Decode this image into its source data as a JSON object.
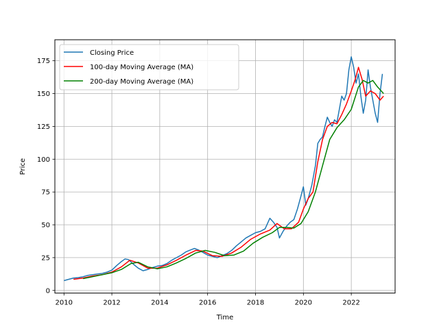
{
  "chart_data": {
    "type": "line",
    "title": "",
    "xlabel": "Time",
    "ylabel": "Price",
    "xlim": [
      2009.62,
      2023.83
    ],
    "ylim": [
      -2,
      191
    ],
    "x_ticks": [
      2010,
      2012,
      2014,
      2016,
      2018,
      2020,
      2022
    ],
    "x_tick_labels": [
      "2010",
      "2012",
      "2014",
      "2016",
      "2018",
      "2020",
      "2022"
    ],
    "y_ticks": [
      0,
      25,
      50,
      75,
      100,
      125,
      150,
      175
    ],
    "y_tick_labels": [
      "0",
      "25",
      "50",
      "75",
      "100",
      "125",
      "150",
      "175"
    ],
    "grid": true,
    "legend_position": "upper-left",
    "series": [
      {
        "name": "Closing Price",
        "color": "#1f77b4",
        "x": [
          2010.0,
          2010.2,
          2010.4,
          2010.6,
          2010.8,
          2011.0,
          2011.2,
          2011.4,
          2011.6,
          2011.8,
          2012.0,
          2012.2,
          2012.4,
          2012.55,
          2012.7,
          2012.9,
          2013.1,
          2013.3,
          2013.5,
          2013.7,
          2013.9,
          2014.1,
          2014.3,
          2014.5,
          2014.7,
          2014.9,
          2015.1,
          2015.3,
          2015.45,
          2015.6,
          2015.8,
          2016.0,
          2016.2,
          2016.4,
          2016.6,
          2016.8,
          2017.0,
          2017.2,
          2017.4,
          2017.6,
          2017.8,
          2018.0,
          2018.2,
          2018.4,
          2018.6,
          2018.75,
          2018.9,
          2019.0,
          2019.15,
          2019.3,
          2019.45,
          2019.6,
          2019.75,
          2019.9,
          2020.0,
          2020.1,
          2020.2,
          2020.35,
          2020.5,
          2020.6,
          2020.7,
          2020.8,
          2020.9,
          2021.0,
          2021.1,
          2021.2,
          2021.3,
          2021.4,
          2021.5,
          2021.6,
          2021.7,
          2021.8,
          2021.9,
          2022.0,
          2022.1,
          2022.2,
          2022.3,
          2022.4,
          2022.5,
          2022.6,
          2022.7,
          2022.8,
          2022.9,
          2023.0,
          2023.1,
          2023.2,
          2023.3
        ],
        "values": [
          7.5,
          8.5,
          9.5,
          9.8,
          10.5,
          11.5,
          12.0,
          12.5,
          13.0,
          14.0,
          15.5,
          19.0,
          22.0,
          24.0,
          23.5,
          20.0,
          17.0,
          15.0,
          16.0,
          17.5,
          18.5,
          19.0,
          20.5,
          23.0,
          25.0,
          27.0,
          29.5,
          31.0,
          32.0,
          31.0,
          29.0,
          27.0,
          26.0,
          25.0,
          26.5,
          28.0,
          30.5,
          34.0,
          37.0,
          40.0,
          42.0,
          44.0,
          45.0,
          47.0,
          55.0,
          52.0,
          48.0,
          40.0,
          45.0,
          49.0,
          52.0,
          54.0,
          62.0,
          72.0,
          79.0,
          65.0,
          70.0,
          80.0,
          95.0,
          112.0,
          115.0,
          117.0,
          125.0,
          132.0,
          128.0,
          125.0,
          130.0,
          128.0,
          138.0,
          148.0,
          145.0,
          150.0,
          168.0,
          178.0,
          170.0,
          158.0,
          165.0,
          148.0,
          135.0,
          145.0,
          168.0,
          155.0,
          145.0,
          135.0,
          128.0,
          150.0,
          165.0
        ]
      },
      {
        "name": "100-day Moving Average (MA)",
        "color": "#ff0000",
        "x": [
          2010.4,
          2010.8,
          2011.2,
          2011.6,
          2012.0,
          2012.4,
          2012.75,
          2013.1,
          2013.5,
          2013.9,
          2014.3,
          2014.7,
          2015.1,
          2015.5,
          2015.8,
          2016.2,
          2016.6,
          2017.0,
          2017.4,
          2017.8,
          2018.2,
          2018.6,
          2018.9,
          2019.2,
          2019.5,
          2019.8,
          2020.0,
          2020.2,
          2020.4,
          2020.6,
          2020.8,
          2021.0,
          2021.2,
          2021.4,
          2021.6,
          2021.8,
          2022.0,
          2022.15,
          2022.3,
          2022.45,
          2022.6,
          2022.8,
          2023.0,
          2023.2,
          2023.35
        ],
        "values": [
          8.5,
          9.5,
          11.0,
          12.0,
          14.0,
          18.0,
          23.0,
          21.0,
          17.0,
          17.0,
          19.5,
          23.0,
          27.0,
          30.5,
          30.0,
          26.5,
          26.0,
          28.5,
          33.0,
          39.0,
          43.0,
          46.0,
          51.0,
          47.0,
          47.0,
          52.0,
          62.0,
          70.0,
          75.0,
          98.0,
          115.0,
          125.0,
          128.0,
          127.0,
          134.0,
          142.0,
          152.0,
          160.0,
          170.0,
          161.0,
          148.0,
          152.0,
          150.0,
          145.0,
          148.0
        ]
      },
      {
        "name": "200-day Moving Average (MA)",
        "color": "#008000",
        "x": [
          2010.8,
          2011.2,
          2011.6,
          2012.0,
          2012.4,
          2012.8,
          2013.1,
          2013.5,
          2013.9,
          2014.3,
          2014.7,
          2015.1,
          2015.5,
          2015.9,
          2016.3,
          2016.7,
          2017.1,
          2017.5,
          2017.9,
          2018.3,
          2018.7,
          2019.0,
          2019.3,
          2019.6,
          2019.9,
          2020.2,
          2020.5,
          2020.8,
          2021.1,
          2021.4,
          2021.7,
          2022.0,
          2022.3,
          2022.5,
          2022.7,
          2022.9,
          2023.1,
          2023.35
        ],
        "values": [
          9.0,
          10.5,
          12.0,
          13.5,
          16.0,
          20.5,
          21.5,
          18.0,
          16.5,
          18.0,
          21.0,
          24.5,
          28.5,
          30.5,
          29.0,
          26.5,
          27.0,
          30.0,
          36.0,
          40.5,
          44.0,
          48.0,
          48.0,
          47.5,
          51.0,
          60.0,
          75.0,
          95.0,
          115.0,
          124.0,
          130.0,
          138.0,
          155.0,
          160.0,
          158.0,
          160.0,
          155.0,
          150.0
        ]
      }
    ]
  }
}
